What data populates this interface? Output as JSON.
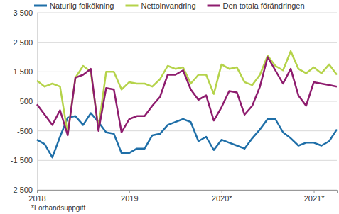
{
  "chart_data": {
    "type": "line",
    "categories": [
      "2018",
      null,
      null,
      null,
      null,
      null,
      null,
      null,
      null,
      null,
      null,
      null,
      "2019",
      null,
      null,
      null,
      null,
      null,
      null,
      null,
      null,
      null,
      null,
      null,
      "2020*",
      null,
      null,
      null,
      null,
      null,
      null,
      null,
      null,
      null,
      null,
      null,
      "2021*",
      null,
      null,
      null
    ],
    "series": [
      {
        "name": "Naturlig folkökning",
        "color": "#1f6fa8",
        "values": [
          -800,
          -950,
          -1400,
          -700,
          -50,
          0,
          -300,
          100,
          -200,
          -550,
          -600,
          -1250,
          -1250,
          -1100,
          -1100,
          -650,
          -600,
          -300,
          -200,
          -100,
          -200,
          -850,
          -700,
          -1150,
          -800,
          -900,
          -1000,
          -1100,
          -750,
          -450,
          -100,
          -100,
          -550,
          -750,
          -1000,
          -900,
          -900,
          -1000,
          -850,
          -450
        ]
      },
      {
        "name": "Nettoinvandring",
        "color": "#b5d34a",
        "values": [
          1200,
          1000,
          1100,
          1000,
          -600,
          1300,
          1700,
          1500,
          -400,
          1500,
          1500,
          900,
          1150,
          1100,
          1100,
          1000,
          1250,
          1700,
          1600,
          1650,
          1100,
          1400,
          1400,
          750,
          1750,
          1600,
          1650,
          1150,
          1050,
          1400,
          2050,
          1700,
          1550,
          2200,
          1600,
          1450,
          1650,
          1450,
          1750,
          1400
        ]
      },
      {
        "name": "Den totala förändringen",
        "color": "#8e1c6e",
        "values": [
          400,
          50,
          -300,
          200,
          -650,
          1300,
          1400,
          1600,
          -500,
          950,
          900,
          -550,
          -100,
          0,
          0,
          350,
          650,
          1400,
          1400,
          1550,
          900,
          550,
          700,
          -150,
          300,
          850,
          800,
          50,
          350,
          1000,
          2000,
          1550,
          1100,
          1600,
          700,
          350,
          1150,
          1100,
          1050,
          1000
        ]
      }
    ],
    "ylim": [
      -2500,
      3500
    ],
    "yticks": [
      {
        "value": -2500,
        "label": "-2 500"
      },
      {
        "value": -1500,
        "label": "-1 500"
      },
      -500,
      500,
      {
        "value": 1500,
        "label": "1 500"
      },
      {
        "value": 2500,
        "label": "2 500"
      },
      {
        "value": 3500,
        "label": "3 500"
      }
    ],
    "grid": true,
    "legend": "top",
    "footnote": "*Förhandsuppgift"
  }
}
